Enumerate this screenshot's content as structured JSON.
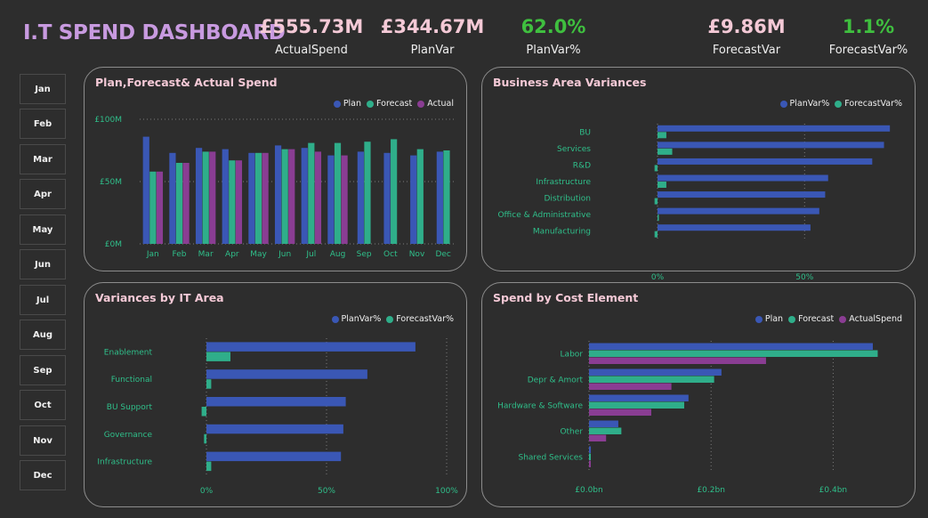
{
  "header": {
    "title": "I.T SPEND DASHBOARD",
    "kpis": [
      {
        "value": "£555.73M",
        "label": "ActualSpend",
        "color": "pink"
      },
      {
        "value": "£344.67M",
        "label": "PlanVar",
        "color": "pink"
      },
      {
        "value": "62.0%",
        "label": "PlanVar%",
        "color": "green"
      },
      {
        "value": "£9.86M",
        "label": "ForecastVar",
        "color": "pink"
      },
      {
        "value": "1.1%",
        "label": "ForecastVar%",
        "color": "green"
      }
    ]
  },
  "months": [
    "Jan",
    "Feb",
    "Mar",
    "Apr",
    "May",
    "Jun",
    "Jul",
    "Aug",
    "Sep",
    "Oct",
    "Nov",
    "Dec"
  ],
  "colors": {
    "plan": "#3a57b5",
    "forecast": "#2fae8a",
    "actual": "#8a3d93",
    "axis_text": "#2fbf8a",
    "category_text": "#2fbf8a",
    "grid": "#7a7a7a",
    "title_pink": "#f4c9d6"
  },
  "cards": {
    "spend": {
      "title": "Plan,Forecast& Actual Spend",
      "legend": [
        "Plan",
        "Forecast",
        "Actual"
      ]
    },
    "business": {
      "title": "Business Area Variances",
      "legend": [
        "PlanVar%",
        "ForecastVar%"
      ]
    },
    "itarea": {
      "title": "Variances by IT Area",
      "legend": [
        "PlanVar%",
        "ForecastVar%"
      ]
    },
    "cost": {
      "title": "Spend by Cost Element",
      "legend": [
        "Plan",
        "Forecast",
        "ActualSpend"
      ]
    }
  },
  "chart_data": [
    {
      "id": "spend",
      "type": "bar",
      "title": "Plan,Forecast& Actual Spend",
      "categories": [
        "Jan",
        "Feb",
        "Mar",
        "Apr",
        "May",
        "Jun",
        "Jul",
        "Aug",
        "Sep",
        "Oct",
        "Nov",
        "Dec"
      ],
      "series": [
        {
          "name": "Plan",
          "values": [
            86,
            73,
            77,
            76,
            73,
            79,
            77,
            71,
            74,
            73,
            71,
            74
          ]
        },
        {
          "name": "Forecast",
          "values": [
            58,
            65,
            74,
            67,
            73,
            76,
            81,
            81,
            82,
            84,
            76,
            75
          ]
        },
        {
          "name": "Actual",
          "values": [
            58,
            65,
            74,
            67,
            73,
            76,
            74,
            71,
            0,
            0,
            0,
            0
          ]
        }
      ],
      "yticks": [
        "£0M",
        "£50M",
        "£100M"
      ],
      "ylim": [
        0,
        100
      ],
      "grid": true
    },
    {
      "id": "business",
      "type": "bar",
      "orientation": "horizontal",
      "title": "Business Area Variances",
      "categories": [
        "BU",
        "Services",
        "R&D",
        "Infrastructure",
        "Distribution",
        "Office & Administrative",
        "Manufacturing"
      ],
      "series": [
        {
          "name": "PlanVar%",
          "values": [
            79,
            77,
            73,
            58,
            57,
            55,
            52
          ]
        },
        {
          "name": "ForecastVar%",
          "values": [
            3,
            5,
            -1,
            3,
            -1,
            0,
            -1
          ]
        }
      ],
      "xticks": [
        "0%",
        "50%"
      ],
      "xlim": [
        0,
        85
      ],
      "grid": true
    },
    {
      "id": "itarea",
      "type": "bar",
      "orientation": "horizontal",
      "title": "Variances by IT Area",
      "categories": [
        "Enablement",
        "Functional",
        "BU Support",
        "Governance",
        "Infrastructure"
      ],
      "series": [
        {
          "name": "PlanVar%",
          "values": [
            87,
            67,
            58,
            57,
            56
          ]
        },
        {
          "name": "ForecastVar%",
          "values": [
            10,
            2,
            -2,
            -1,
            2
          ]
        }
      ],
      "xticks": [
        "0%",
        "50%",
        "100%"
      ],
      "xlim": [
        0,
        100
      ],
      "grid": true
    },
    {
      "id": "cost",
      "type": "bar",
      "orientation": "horizontal",
      "title": "Spend by Cost Element",
      "categories": [
        "Labor",
        "Depr & Amort",
        "Hardware & Software",
        "Other",
        "Shared Services"
      ],
      "series": [
        {
          "name": "Plan",
          "values": [
            0.465,
            0.217,
            0.163,
            0.048,
            0.003
          ]
        },
        {
          "name": "Forecast",
          "values": [
            0.473,
            0.205,
            0.156,
            0.053,
            0.002
          ]
        },
        {
          "name": "ActualSpend",
          "values": [
            0.29,
            0.135,
            0.102,
            0.028,
            0.001
          ]
        }
      ],
      "xticks": [
        "£0.0bn",
        "£0.2bn",
        "£0.4bn"
      ],
      "xlim": [
        0,
        0.5
      ],
      "grid": true
    }
  ]
}
